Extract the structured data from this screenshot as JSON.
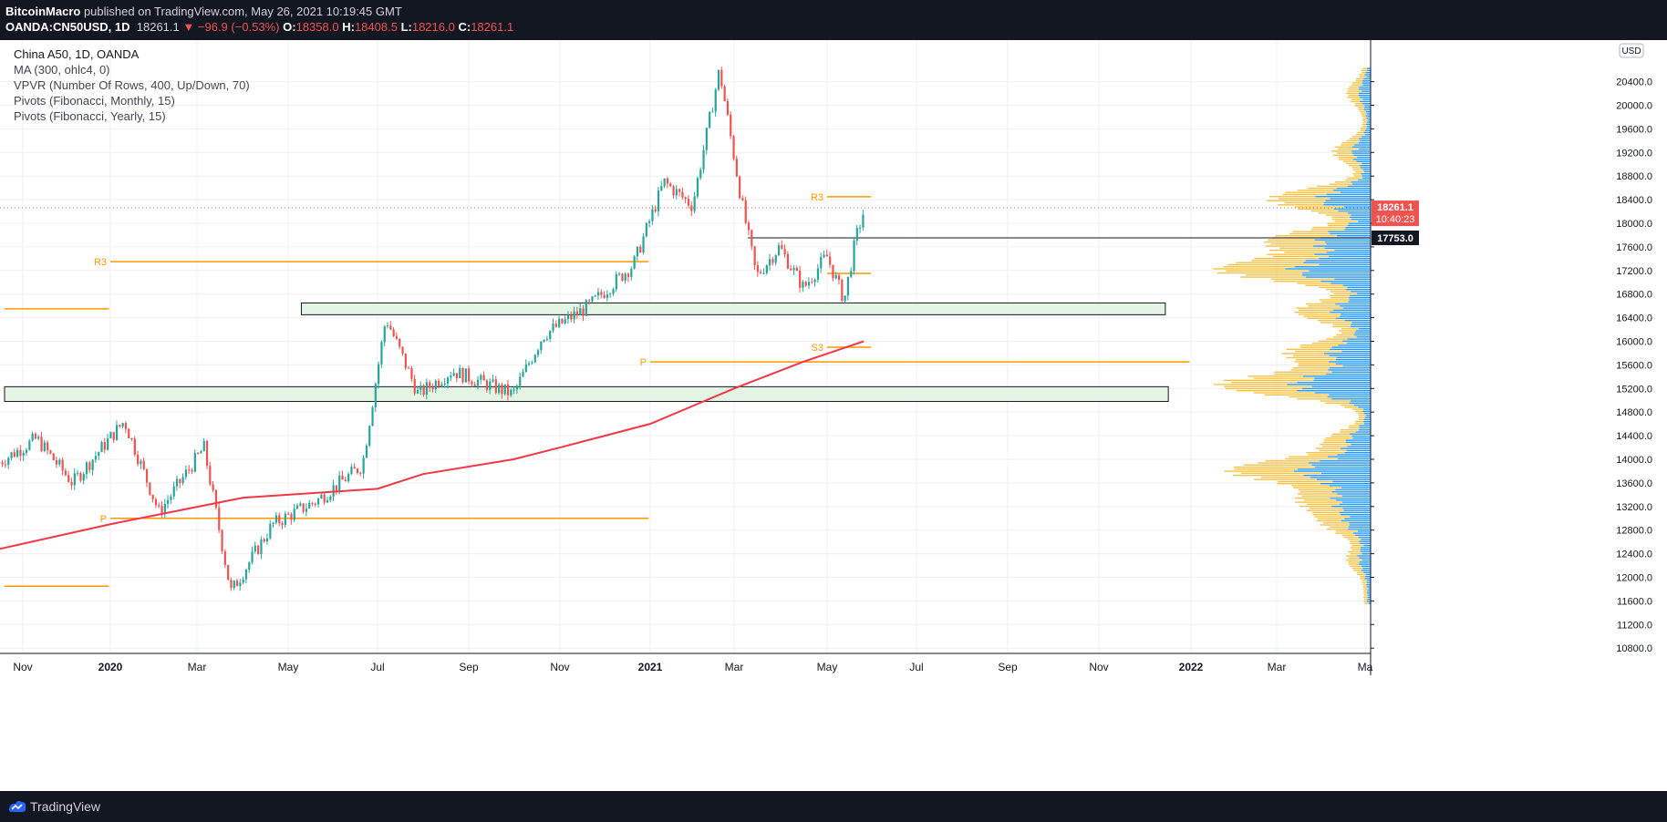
{
  "header": {
    "author": "BitcoinMacro",
    "published_text": " published on TradingView.com, May 26, 2021 10:19:45 GMT",
    "symbol": "OANDA:CN50USD, 1D",
    "last": "18261.1",
    "change": "−96.9 (−0.53%)",
    "open_label": "O:",
    "open": "18358.0",
    "high_label": "H:",
    "high": "18408.5",
    "low_label": "L:",
    "low": "18216.0",
    "close_label": "C:",
    "close": "18261.1"
  },
  "legend": {
    "title": "China A50, 1D, OANDA",
    "indicators": [
      "MA (300, ohlc4, 0)",
      "VPVR (Number Of Rows, 400, Up/Down, 70)",
      "Pivots (Fibonacci, Monthly, 15)",
      "Pivots (Fibonacci, Yearly, 15)"
    ]
  },
  "footer": {
    "brand": "TradingView"
  },
  "colors": {
    "up": "#26a69a",
    "down": "#ef5350",
    "ma": "#f23645",
    "pivot": "#ff9800",
    "vp_up": "#2196f3",
    "vp_down": "#f7c244",
    "zone_fill": "#e3f4e3"
  },
  "chart_data": {
    "type": "candlestick",
    "currency": "USD",
    "y_axis_ticks": [
      10800,
      11200,
      11600,
      12000,
      12400,
      12800,
      13200,
      13600,
      14000,
      14400,
      14800,
      15200,
      15600,
      16000,
      16400,
      16800,
      17200,
      17600,
      18000,
      18400,
      18800,
      19200,
      19600,
      20000,
      20400
    ],
    "x_axis_ticks": [
      "Nov",
      "2020",
      "Mar",
      "May",
      "Jul",
      "Sep",
      "Nov",
      "2021",
      "Mar",
      "May",
      "Jul",
      "Sep",
      "Nov",
      "2022",
      "Mar",
      "Ma"
    ],
    "last_price_label": "18261.1",
    "countdown_label": "10:40:23",
    "level_label": "17753.0",
    "level": 17753,
    "series_points": [
      {
        "date": "2019-10-15",
        "price": 13950
      },
      {
        "date": "2019-11-10",
        "price": 14350
      },
      {
        "date": "2019-12-05",
        "price": 13600
      },
      {
        "date": "2020-01-10",
        "price": 14650
      },
      {
        "date": "2020-02-03",
        "price": 13100
      },
      {
        "date": "2020-03-05",
        "price": 14200
      },
      {
        "date": "2020-03-23",
        "price": 11750
      },
      {
        "date": "2020-04-20",
        "price": 12900
      },
      {
        "date": "2020-05-20",
        "price": 13300
      },
      {
        "date": "2020-06-20",
        "price": 13900
      },
      {
        "date": "2020-07-06",
        "price": 16400
      },
      {
        "date": "2020-07-28",
        "price": 15100
      },
      {
        "date": "2020-08-20",
        "price": 15500
      },
      {
        "date": "2020-09-30",
        "price": 15100
      },
      {
        "date": "2020-10-20",
        "price": 16100
      },
      {
        "date": "2020-11-20",
        "price": 16600
      },
      {
        "date": "2020-12-20",
        "price": 17300
      },
      {
        "date": "2021-01-10",
        "price": 18700
      },
      {
        "date": "2021-01-30",
        "price": 18300
      },
      {
        "date": "2021-02-18",
        "price": 20600
      },
      {
        "date": "2021-03-05",
        "price": 18400
      },
      {
        "date": "2021-03-15",
        "price": 17100
      },
      {
        "date": "2021-03-30",
        "price": 17600
      },
      {
        "date": "2021-04-15",
        "price": 16900
      },
      {
        "date": "2021-04-30",
        "price": 17450
      },
      {
        "date": "2021-05-12",
        "price": 16700
      },
      {
        "date": "2021-05-20",
        "price": 17750
      },
      {
        "date": "2021-05-26",
        "price": 18261
      }
    ],
    "moving_average": [
      {
        "date": "2019-10-01",
        "price": 12400
      },
      {
        "date": "2020-01-01",
        "price": 12900
      },
      {
        "date": "2020-04-01",
        "price": 13350
      },
      {
        "date": "2020-07-01",
        "price": 13500
      },
      {
        "date": "2020-08-01",
        "price": 13750
      },
      {
        "date": "2020-10-01",
        "price": 14000
      },
      {
        "date": "2020-11-01",
        "price": 14200
      },
      {
        "date": "2021-01-01",
        "price": 14600
      },
      {
        "date": "2021-03-01",
        "price": 15200
      },
      {
        "date": "2021-04-15",
        "price": 15650
      },
      {
        "date": "2021-05-26",
        "price": 16000
      }
    ],
    "pivots": [
      {
        "label": "R3",
        "price": 17350,
        "from": "2020-01-01",
        "to": "2020-12-31"
      },
      {
        "label": "P",
        "price": 13000,
        "from": "2020-01-01",
        "to": "2020-12-31"
      },
      {
        "label": "",
        "price": 16550,
        "from": "2019-10-01",
        "to": "2019-12-31"
      },
      {
        "label": "",
        "price": 11850,
        "from": "2019-10-01",
        "to": "2019-12-31"
      },
      {
        "label": "P",
        "price": 15650,
        "from": "2021-01-01",
        "to": "2021-12-31"
      },
      {
        "label": "R3",
        "price": 18450,
        "from": "2021-05-01",
        "to": "2021-05-31"
      },
      {
        "label": "",
        "price": 17150,
        "from": "2021-05-01",
        "to": "2021-05-31"
      },
      {
        "label": "S3",
        "price": 15900,
        "from": "2021-05-01",
        "to": "2021-05-31"
      }
    ],
    "zones": [
      {
        "low": 16450,
        "high": 16650,
        "from": "2020-05-10",
        "to": "2021-12-15"
      },
      {
        "low": 14980,
        "high": 15230,
        "from": "2019-10-01",
        "to": "2021-12-17"
      }
    ],
    "volume_profile": {
      "low": 11550,
      "high": 20650,
      "peaks": [
        {
          "price": 12300,
          "size": 0.1
        },
        {
          "price": 12900,
          "size": 0.22
        },
        {
          "price": 13300,
          "size": 0.35
        },
        {
          "price": 13800,
          "size": 0.78
        },
        {
          "price": 14300,
          "size": 0.22
        },
        {
          "price": 15250,
          "size": 0.85
        },
        {
          "price": 15800,
          "size": 0.45
        },
        {
          "price": 16500,
          "size": 0.4
        },
        {
          "price": 17200,
          "size": 0.85
        },
        {
          "price": 17700,
          "size": 0.55
        },
        {
          "price": 18400,
          "size": 0.55
        },
        {
          "price": 19200,
          "size": 0.18
        },
        {
          "price": 20200,
          "size": 0.1
        }
      ]
    }
  }
}
